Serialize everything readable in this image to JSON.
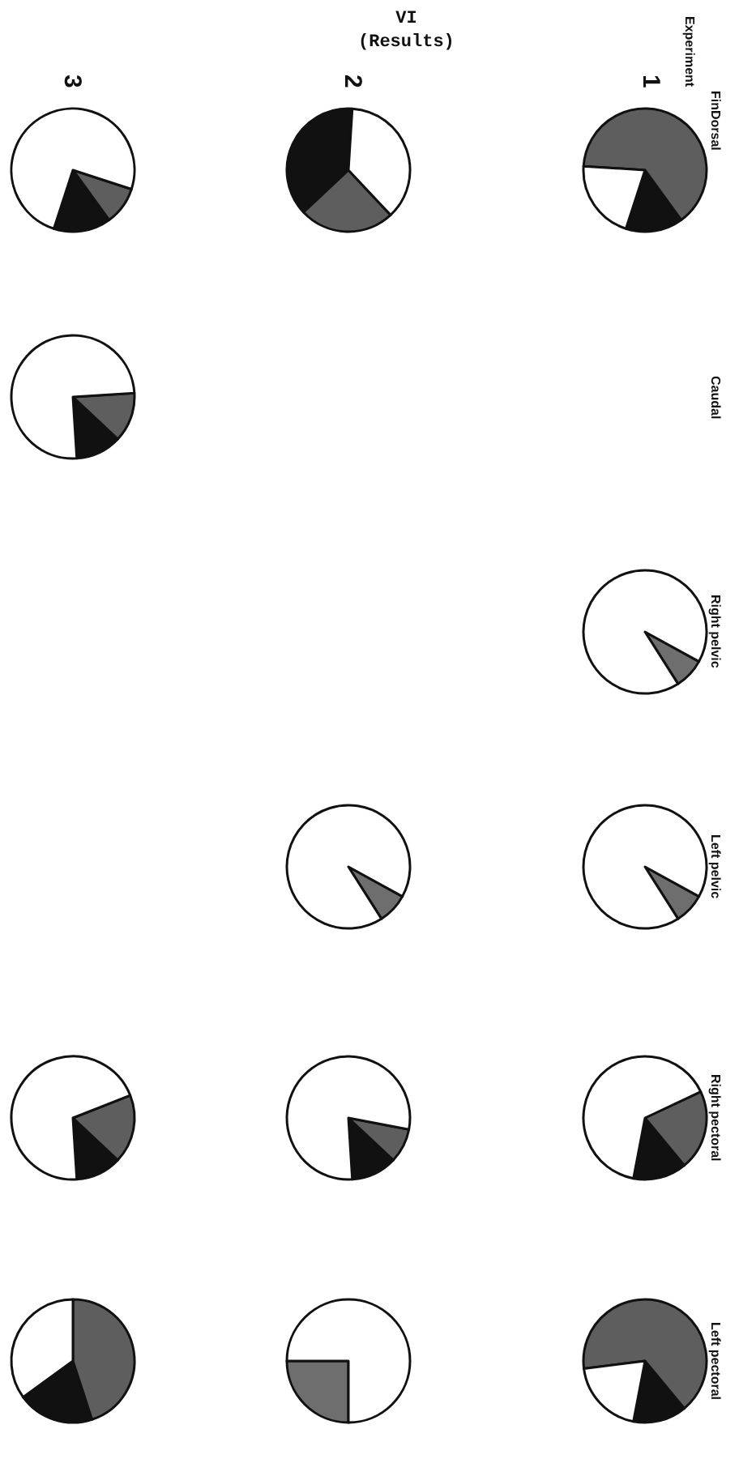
{
  "chart_data": [
    {
      "type": "other",
      "title": "VI\n(Results)",
      "annotations": [
        "Fin",
        "Experiment",
        "1",
        "2",
        "3",
        "Dorsal",
        "Caudal",
        "Right pelvic",
        "Left pelvic",
        "Right pectoral",
        "Left pectoral"
      ]
    },
    {
      "type": "pie",
      "categories": [
        null,
        null,
        null
      ],
      "values": [
        15,
        64,
        21
      ],
      "colors": [
        "#111111",
        "#5e5e5e",
        "#ffffff"
      ]
    },
    {
      "type": "pie",
      "categories": [
        null,
        null
      ],
      "values": [
        8,
        92
      ],
      "colors": [
        "#6e6e6e",
        "#ffffff"
      ]
    },
    {
      "type": "pie",
      "categories": [
        null,
        null
      ],
      "values": [
        8,
        92
      ],
      "colors": [
        "#6e6e6e",
        "#ffffff"
      ]
    },
    {
      "type": "pie",
      "categories": [
        null,
        null,
        null
      ],
      "values": [
        14,
        21,
        65
      ],
      "colors": [
        "#111111",
        "#5e5e5e",
        "#ffffff"
      ]
    },
    {
      "type": "pie",
      "categories": [
        null,
        null,
        null
      ],
      "values": [
        14,
        66,
        20
      ],
      "colors": [
        "#111111",
        "#5e5e5e",
        "#ffffff"
      ]
    },
    {
      "type": "pie",
      "categories": [
        null,
        null,
        null
      ],
      "values": [
        38,
        25,
        37
      ],
      "colors": [
        "#111111",
        "#5e5e5e",
        "#ffffff"
      ]
    },
    {
      "type": "pie",
      "categories": [
        null,
        null
      ],
      "values": [
        8,
        92
      ],
      "colors": [
        "#6e6e6e",
        "#ffffff"
      ]
    },
    {
      "type": "pie",
      "categories": [
        null,
        null,
        null
      ],
      "values": [
        12,
        9,
        79
      ],
      "colors": [
        "#111111",
        "#5e5e5e",
        "#ffffff"
      ]
    },
    {
      "type": "pie",
      "categories": [
        null,
        null
      ],
      "values": [
        25,
        75
      ],
      "colors": [
        "#6e6e6e",
        "#ffffff"
      ]
    },
    {
      "type": "pie",
      "categories": [
        null,
        null,
        null
      ],
      "values": [
        15,
        10,
        75
      ],
      "colors": [
        "#111111",
        "#5e5e5e",
        "#ffffff"
      ]
    },
    {
      "type": "pie",
      "categories": [
        null,
        null,
        null
      ],
      "values": [
        12,
        13,
        75
      ],
      "colors": [
        "#111111",
        "#5e5e5e",
        "#ffffff"
      ]
    },
    {
      "type": "pie",
      "categories": [
        null,
        null,
        null
      ],
      "values": [
        12,
        18,
        70
      ],
      "colors": [
        "#111111",
        "#5e5e5e",
        "#ffffff"
      ]
    },
    {
      "type": "pie",
      "categories": [
        null,
        null,
        null
      ],
      "values": [
        20,
        45,
        35
      ],
      "colors": [
        "#111111",
        "#5e5e5e",
        "#ffffff"
      ]
    }
  ]
}
